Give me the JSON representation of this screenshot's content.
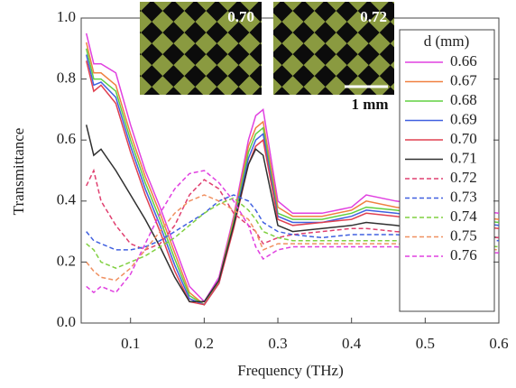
{
  "chart_data": {
    "type": "line",
    "x_label": "Frequency (THz)",
    "y_label": "Transmittance",
    "legend_title": "d (mm)",
    "legend": "right",
    "annotations": [
      "0.70",
      "0.72",
      "1 mm"
    ],
    "x": [
      0.04,
      0.05,
      0.06,
      0.08,
      0.1,
      0.12,
      0.14,
      0.16,
      0.18,
      0.2,
      0.22,
      0.24,
      0.26,
      0.27,
      0.28,
      0.3,
      0.32,
      0.36,
      0.4,
      0.42,
      0.46,
      0.52,
      0.6
    ],
    "xlim": [
      0.033,
      0.6
    ],
    "xticks": [
      0.1,
      0.2,
      0.3,
      0.4,
      0.5,
      0.6
    ],
    "ylim": [
      0,
      1
    ],
    "yticks": [
      {
        "value": 0,
        "label": "0.0"
      },
      0.2,
      0.4,
      0.6,
      0.8,
      {
        "value": 1,
        "label": "1.0"
      }
    ],
    "series": [
      {
        "name": "0.66",
        "color": "#e040e0",
        "dashed": false,
        "values": [
          0.95,
          0.85,
          0.85,
          0.82,
          0.65,
          0.5,
          0.38,
          0.25,
          0.12,
          0.07,
          0.15,
          0.35,
          0.6,
          0.68,
          0.7,
          0.4,
          0.36,
          0.36,
          0.38,
          0.42,
          0.4,
          0.38,
          0.36
        ]
      },
      {
        "name": "0.67",
        "color": "#f08040",
        "dashed": false,
        "values": [
          0.92,
          0.82,
          0.82,
          0.78,
          0.62,
          0.48,
          0.36,
          0.23,
          0.1,
          0.06,
          0.14,
          0.34,
          0.58,
          0.64,
          0.66,
          0.38,
          0.35,
          0.35,
          0.37,
          0.4,
          0.38,
          0.36,
          0.34
        ]
      },
      {
        "name": "0.68",
        "color": "#60d040",
        "dashed": false,
        "values": [
          0.9,
          0.8,
          0.8,
          0.76,
          0.6,
          0.46,
          0.34,
          0.21,
          0.09,
          0.06,
          0.14,
          0.33,
          0.56,
          0.62,
          0.64,
          0.36,
          0.34,
          0.34,
          0.36,
          0.38,
          0.37,
          0.35,
          0.33
        ]
      },
      {
        "name": "0.69",
        "color": "#4060e0",
        "dashed": false,
        "values": [
          0.88,
          0.78,
          0.79,
          0.74,
          0.58,
          0.44,
          0.32,
          0.19,
          0.08,
          0.06,
          0.13,
          0.32,
          0.54,
          0.6,
          0.62,
          0.35,
          0.33,
          0.33,
          0.35,
          0.37,
          0.36,
          0.34,
          0.32
        ]
      },
      {
        "name": "0.70",
        "color": "#e04050",
        "dashed": false,
        "values": [
          0.86,
          0.76,
          0.78,
          0.72,
          0.56,
          0.42,
          0.3,
          0.17,
          0.07,
          0.06,
          0.13,
          0.31,
          0.52,
          0.58,
          0.6,
          0.34,
          0.32,
          0.33,
          0.34,
          0.36,
          0.35,
          0.33,
          0.31
        ]
      },
      {
        "name": "0.71",
        "color": "#303030",
        "dashed": false,
        "values": [
          0.65,
          0.55,
          0.57,
          0.5,
          0.42,
          0.34,
          0.25,
          0.15,
          0.07,
          0.07,
          0.14,
          0.32,
          0.52,
          0.57,
          0.55,
          0.32,
          0.3,
          0.31,
          0.32,
          0.33,
          0.32,
          0.3,
          0.28
        ]
      },
      {
        "name": "0.72",
        "color": "#e04070",
        "dashed": true,
        "values": [
          0.45,
          0.5,
          0.4,
          0.32,
          0.26,
          0.24,
          0.26,
          0.32,
          0.42,
          0.47,
          0.44,
          0.36,
          0.32,
          0.3,
          0.26,
          0.28,
          0.29,
          0.3,
          0.31,
          0.31,
          0.3,
          0.29,
          0.28
        ]
      },
      {
        "name": "0.73",
        "color": "#4060e0",
        "dashed": true,
        "values": [
          0.3,
          0.27,
          0.26,
          0.24,
          0.24,
          0.25,
          0.27,
          0.3,
          0.33,
          0.36,
          0.4,
          0.42,
          0.4,
          0.37,
          0.33,
          0.3,
          0.29,
          0.28,
          0.29,
          0.29,
          0.29,
          0.28,
          0.27
        ]
      },
      {
        "name": "0.74",
        "color": "#80d040",
        "dashed": true,
        "values": [
          0.26,
          0.24,
          0.2,
          0.18,
          0.2,
          0.22,
          0.25,
          0.28,
          0.32,
          0.36,
          0.39,
          0.41,
          0.37,
          0.34,
          0.3,
          0.28,
          0.27,
          0.27,
          0.27,
          0.27,
          0.27,
          0.26,
          0.25
        ]
      },
      {
        "name": "0.75",
        "color": "#f09060",
        "dashed": true,
        "values": [
          0.2,
          0.17,
          0.15,
          0.14,
          0.18,
          0.24,
          0.3,
          0.36,
          0.4,
          0.42,
          0.4,
          0.37,
          0.34,
          0.3,
          0.24,
          0.26,
          0.26,
          0.26,
          0.26,
          0.26,
          0.26,
          0.25,
          0.24
        ]
      },
      {
        "name": "0.76",
        "color": "#e040e0",
        "dashed": true,
        "values": [
          0.12,
          0.1,
          0.12,
          0.1,
          0.16,
          0.26,
          0.36,
          0.44,
          0.49,
          0.5,
          0.46,
          0.4,
          0.32,
          0.25,
          0.21,
          0.24,
          0.25,
          0.25,
          0.25,
          0.25,
          0.25,
          0.24,
          0.23
        ]
      }
    ]
  }
}
